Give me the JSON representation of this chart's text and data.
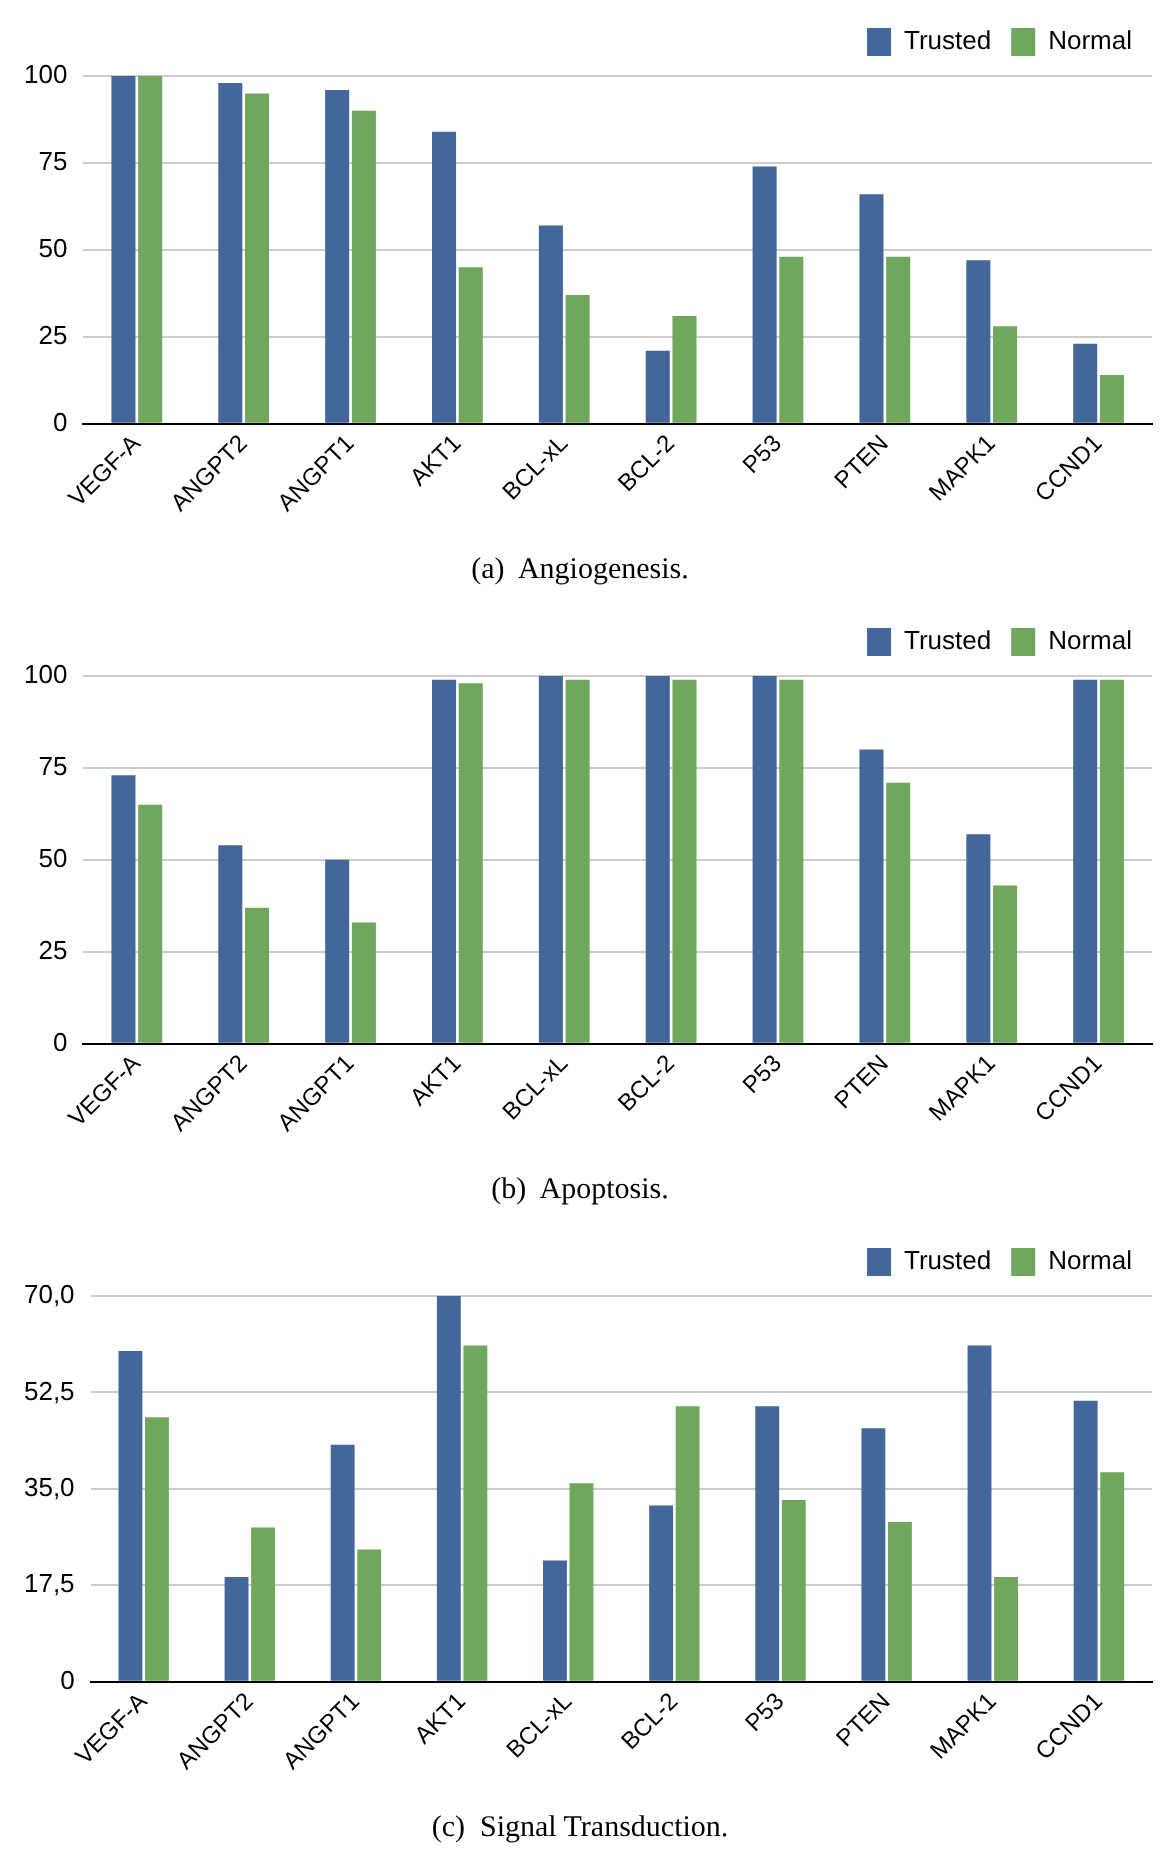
{
  "chart_data": [
    {
      "type": "bar",
      "title": "(a)  Angiogenesis.",
      "categories": [
        "VEGF-A",
        "ANGPT2",
        "ANGPT1",
        "AKT1",
        "BCL-xL",
        "BCL-2",
        "P53",
        "PTEN",
        "MAPK1",
        "CCND1"
      ],
      "series": [
        {
          "name": "Trusted",
          "color": "#44679b",
          "values": [
            100,
            98,
            96,
            84,
            57,
            21,
            74,
            66,
            47,
            23
          ]
        },
        {
          "name": "Normal",
          "color": "#6fa75c",
          "values": [
            100,
            95,
            90,
            45,
            37,
            31,
            48,
            48,
            28,
            14
          ]
        }
      ],
      "ylim": [
        0,
        100
      ],
      "yticks": [
        0,
        25,
        50,
        75,
        100
      ],
      "grid": "y",
      "legend": "top right"
    },
    {
      "type": "bar",
      "title": "(b)  Apoptosis.",
      "categories": [
        "VEGF-A",
        "ANGPT2",
        "ANGPT1",
        "AKT1",
        "BCL-xL",
        "BCL-2",
        "P53",
        "PTEN",
        "MAPK1",
        "CCND1"
      ],
      "series": [
        {
          "name": "Trusted",
          "color": "#44679b",
          "values": [
            73,
            54,
            50,
            99,
            100,
            100,
            100,
            80,
            57,
            99
          ]
        },
        {
          "name": "Normal",
          "color": "#6fa75c",
          "values": [
            65,
            37,
            33,
            98,
            99,
            99,
            99,
            71,
            43,
            99
          ]
        }
      ],
      "ylim": [
        0,
        100
      ],
      "yticks": [
        0,
        25,
        50,
        75,
        100
      ],
      "grid": "y",
      "legend": "top right"
    },
    {
      "type": "bar",
      "title": "(c)  Signal Transduction.",
      "categories": [
        "VEGF-A",
        "ANGPT2",
        "ANGPT1",
        "AKT1",
        "BCL-xL",
        "BCL-2",
        "P53",
        "PTEN",
        "MAPK1",
        "CCND1"
      ],
      "series": [
        {
          "name": "Trusted",
          "color": "#44679b",
          "values": [
            60,
            19,
            43,
            70,
            22,
            32,
            50,
            46,
            61,
            51
          ]
        },
        {
          "name": "Normal",
          "color": "#6fa75c",
          "values": [
            48,
            28,
            24,
            61,
            36,
            50,
            33,
            29,
            19,
            38
          ]
        }
      ],
      "ylim": [
        0,
        70
      ],
      "yticks": [
        0,
        {
          "value": 17.5,
          "label": "17,5"
        },
        {
          "value": 35,
          "label": "35,0"
        },
        {
          "value": 52.5,
          "label": "52,5"
        },
        {
          "value": 70,
          "label": "70,0"
        }
      ],
      "grid": "y",
      "legend": "top right"
    }
  ]
}
